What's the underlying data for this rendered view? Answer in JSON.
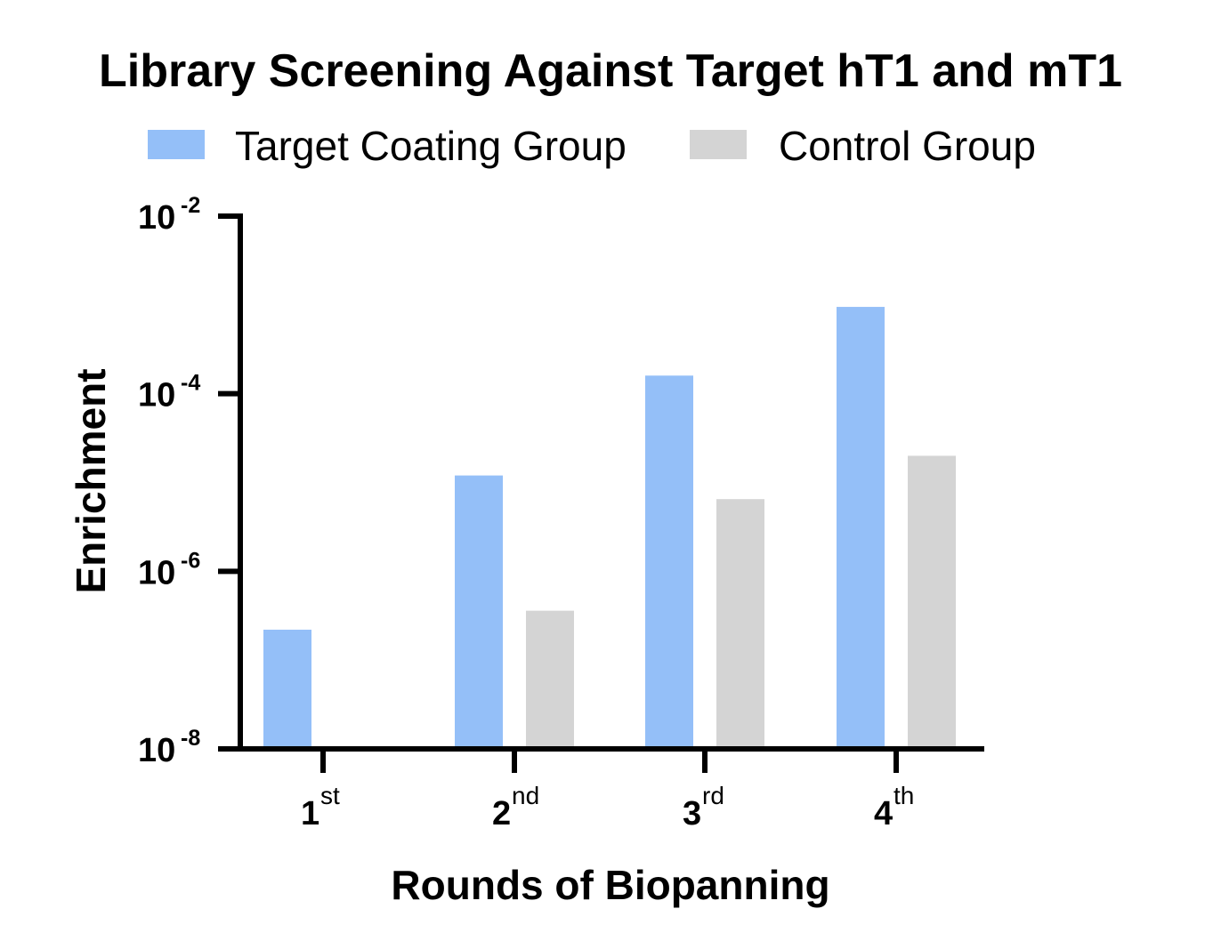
{
  "chart_data": {
    "type": "bar",
    "title": "Library Screening Against Target hT1 and mT1",
    "xlabel": "Rounds of Biopanning",
    "ylabel": "Enrichment",
    "yscale": "log",
    "ylim": [
      1e-08,
      0.01
    ],
    "categories": [
      {
        "base": "1",
        "suffix": "st"
      },
      {
        "base": "2",
        "suffix": "nd"
      },
      {
        "base": "3",
        "suffix": "rd"
      },
      {
        "base": "4",
        "suffix": "th"
      }
    ],
    "yticks": [
      {
        "base": "10",
        "exp": "-8"
      },
      {
        "base": "10",
        "exp": "-6"
      },
      {
        "base": "10",
        "exp": "-4"
      },
      {
        "base": "10",
        "exp": "-2"
      }
    ],
    "series": [
      {
        "name": "Target Coating Group",
        "color": "#94BFF8",
        "values": [
          2.2e-07,
          1.2e-05,
          0.00016,
          0.00095
        ]
      },
      {
        "name": "Control Group",
        "color": "#D4D4D4",
        "values": [
          null,
          3.6e-07,
          6.5e-06,
          2e-05
        ]
      }
    ],
    "legend": "top",
    "grid": false
  }
}
